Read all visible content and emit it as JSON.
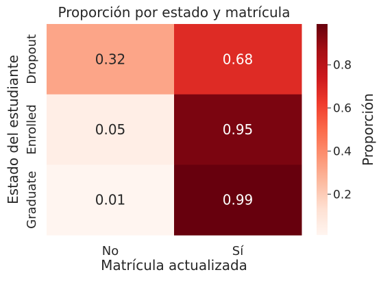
{
  "chart_data": {
    "type": "heatmap",
    "title": "Proporción por estado y matrícula",
    "xlabel": "Matrícula actualizada",
    "ylabel": "Estado del estudiante",
    "x_categories": [
      "No",
      "Sí"
    ],
    "y_categories": [
      "Dropout",
      "Enrolled",
      "Graduate"
    ],
    "values": [
      [
        0.32,
        0.68
      ],
      [
        0.05,
        0.95
      ],
      [
        0.01,
        0.99
      ]
    ],
    "colorbar": {
      "label": "Proporción",
      "range": [
        0.01,
        0.99
      ],
      "ticks": [
        "0.2",
        "0.4",
        "0.6",
        "0.8"
      ],
      "colormap": "Reds"
    }
  }
}
